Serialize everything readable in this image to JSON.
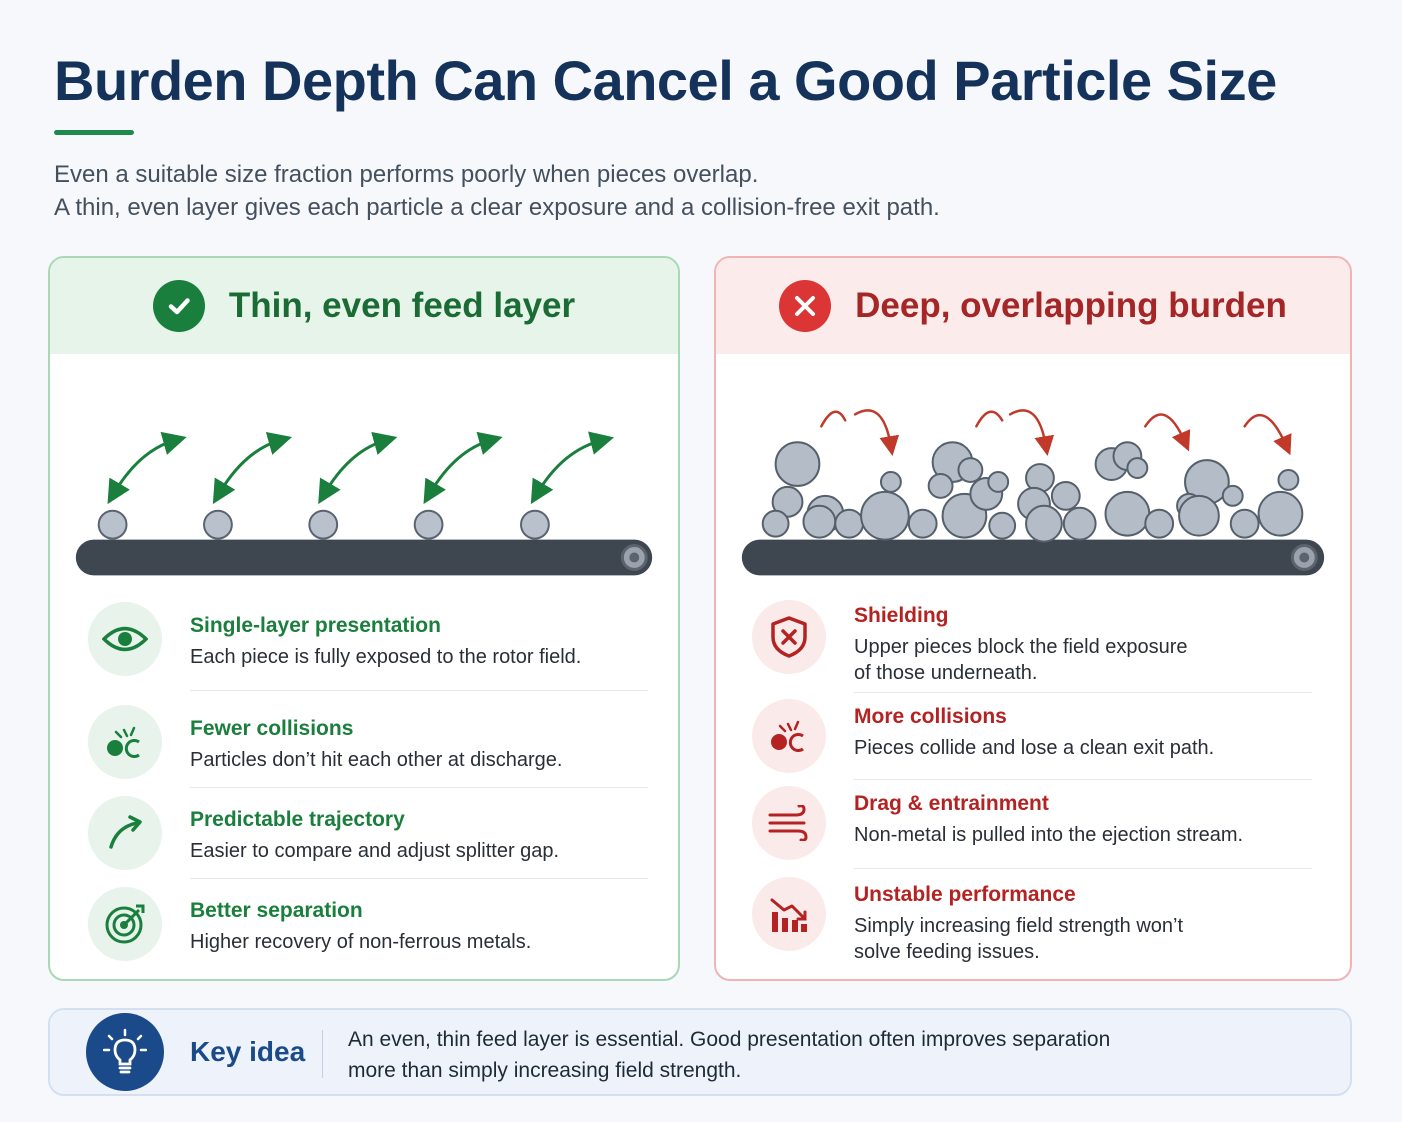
{
  "title": "Burden Depth Can Cancel a Good Particle Size",
  "subtitle": {
    "line1": "Even a suitable size fraction performs poorly when pieces overlap.",
    "line2": "A thin, even layer gives each particle a clear exposure and a collision-free exit path."
  },
  "good": {
    "header": "Thin, even feed layer",
    "header_icon": "check-icon",
    "accent": "#1a7f3c",
    "items": [
      {
        "icon": "eye-icon",
        "title": "Single-layer presentation",
        "desc": "Each piece is fully exposed to the rotor field."
      },
      {
        "icon": "collision-icon",
        "title": "Fewer collisions",
        "desc": "Particles don’t hit each other at discharge."
      },
      {
        "icon": "trajectory-arrow-icon",
        "title": "Predictable trajectory",
        "desc": "Easier to compare and adjust splitter gap."
      },
      {
        "icon": "target-icon",
        "title": "Better separation",
        "desc": "Higher recovery of non-ferrous metals."
      }
    ]
  },
  "bad": {
    "header": "Deep, overlapping burden",
    "header_icon": "x-icon",
    "accent": "#dc3535",
    "items": [
      {
        "icon": "shield-x-icon",
        "title": "Shielding",
        "desc1": "Upper pieces block the field exposure",
        "desc2": "of those underneath."
      },
      {
        "icon": "collision-icon",
        "title": "More collisions",
        "desc1": "Pieces collide and lose a clean exit path.",
        "desc2": ""
      },
      {
        "icon": "wind-icon",
        "title": "Drag & entrainment",
        "desc1": "Non-metal is pulled into the ejection stream.",
        "desc2": ""
      },
      {
        "icon": "declining-chart-icon",
        "title": "Unstable performance",
        "desc1": "Simply increasing field strength won’t",
        "desc2": "solve feeding issues."
      }
    ]
  },
  "key": {
    "icon": "lightbulb-icon",
    "label": "Key idea",
    "line1": "An even, thin feed layer is essential. Good presentation often improves separation",
    "line2": "more than simply increasing field strength."
  }
}
